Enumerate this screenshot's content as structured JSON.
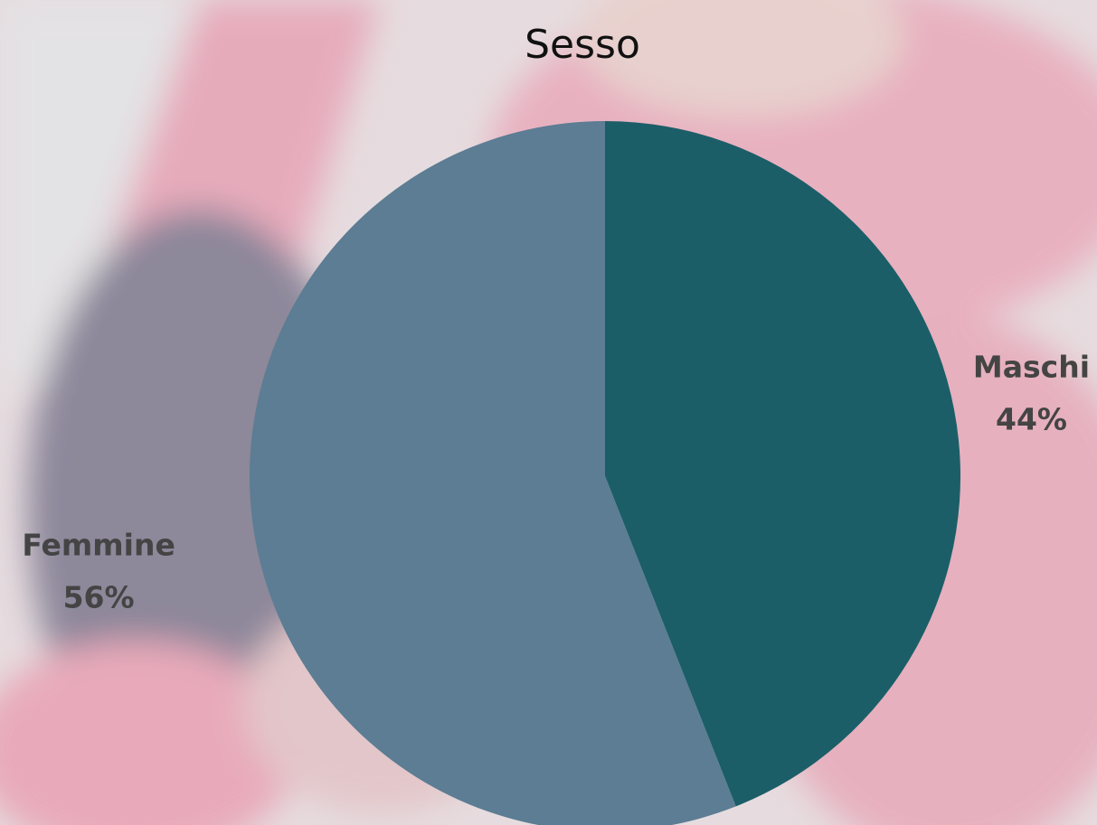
{
  "chart_data": {
    "type": "pie",
    "title": "Sesso",
    "categories": [
      "Maschi",
      "Femmine"
    ],
    "values": [
      44,
      56
    ],
    "value_labels": [
      "44%",
      "56%"
    ],
    "colors": [
      "#1b5e68",
      "#5c7d93"
    ]
  }
}
